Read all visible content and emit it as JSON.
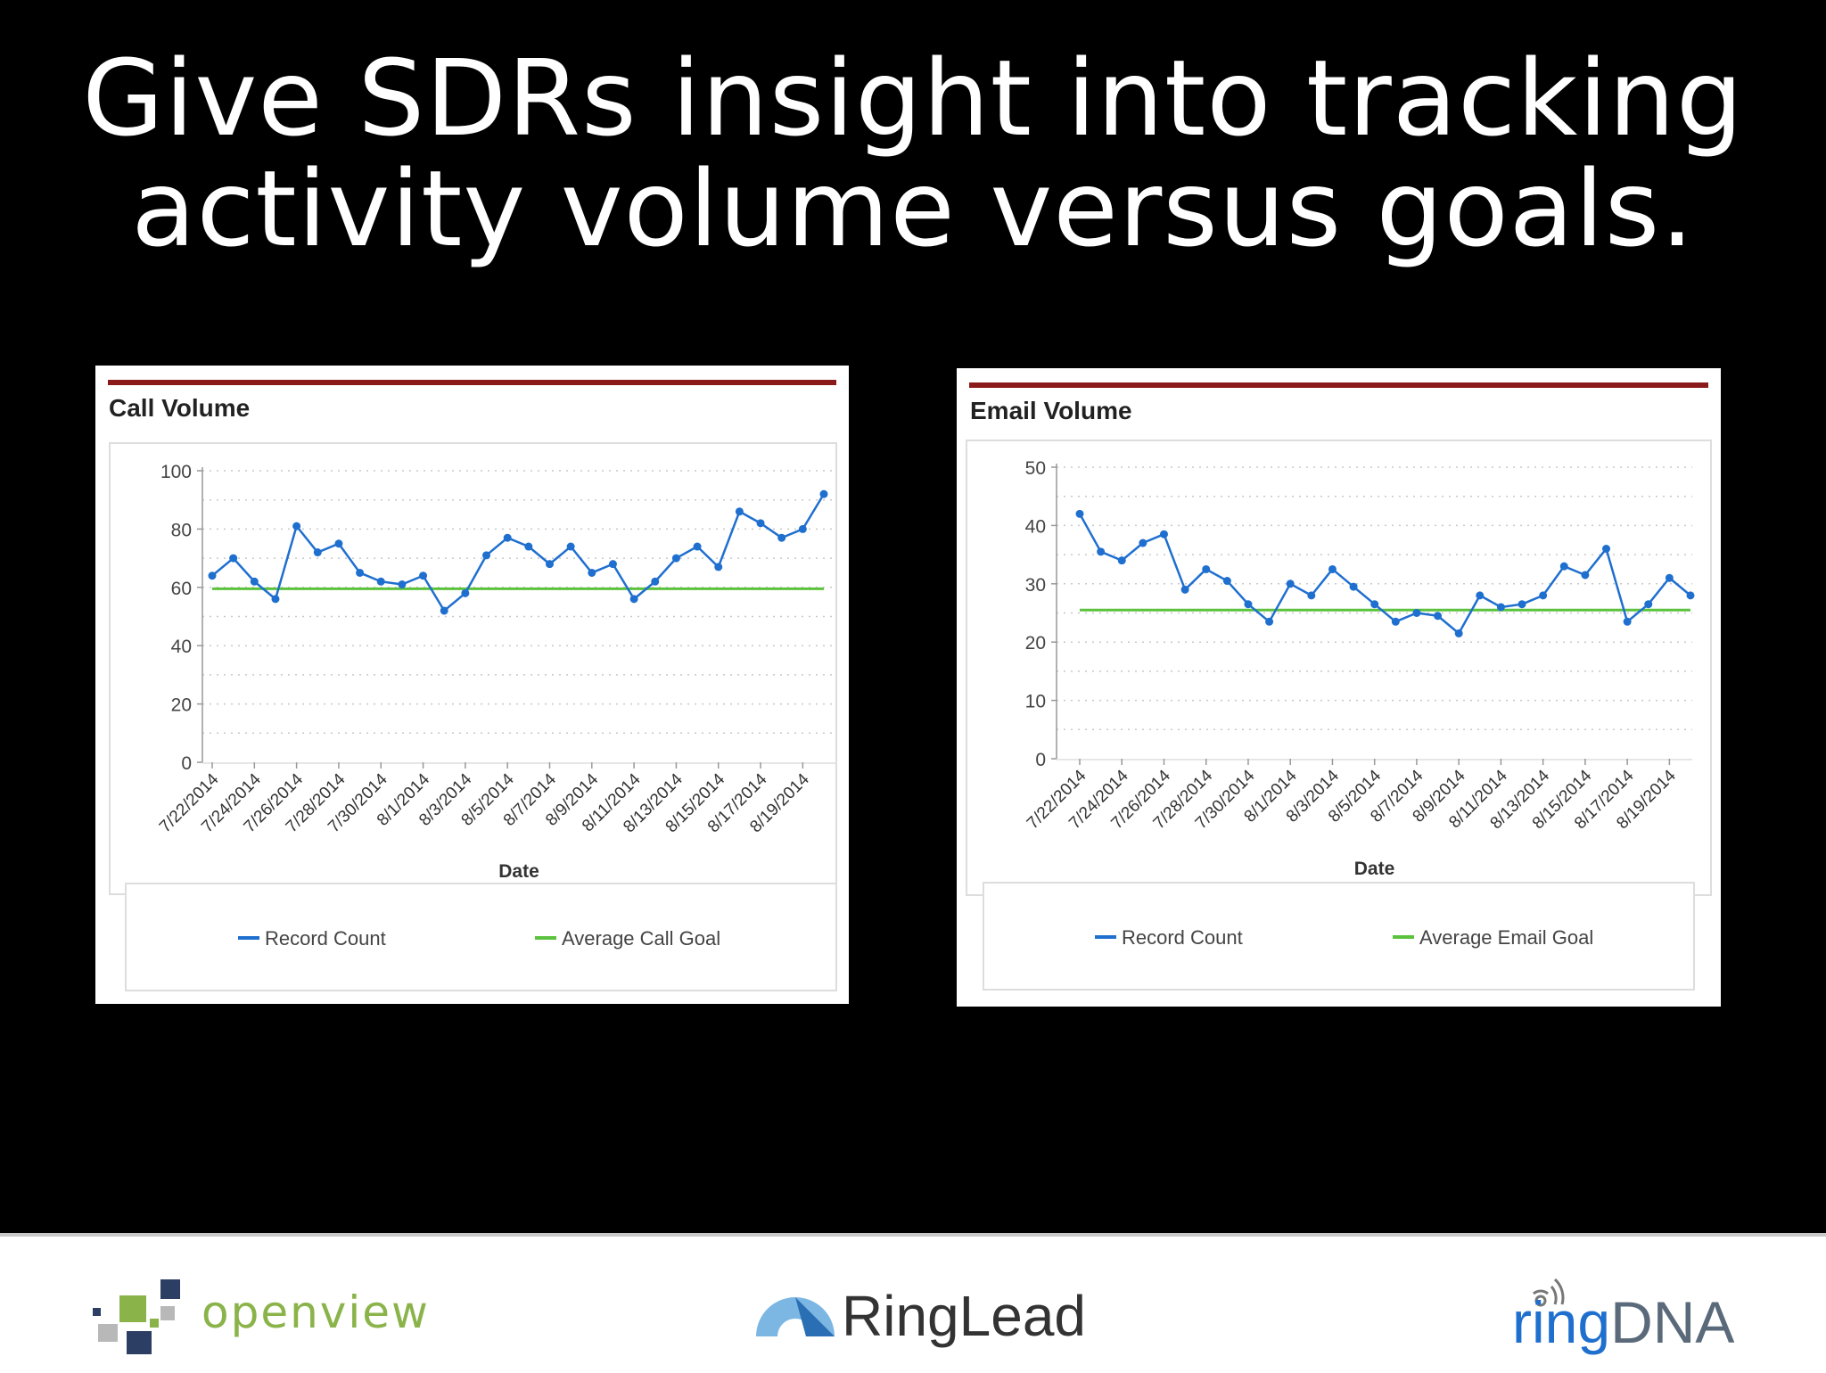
{
  "slide": {
    "title_line1": "Give SDRs insight into tracking",
    "title_line2": "activity volume versus goals."
  },
  "colors": {
    "background": "#000000",
    "card_accent": "#8b1a1a",
    "record_line": "#1f6fcf",
    "goal_line": "#5cc23e",
    "gridline": "#c8c8c8"
  },
  "chart_data": [
    {
      "type": "line",
      "title": "Call Volume",
      "xlabel": "Date",
      "ylabel": "",
      "ylim": [
        0,
        100
      ],
      "yticks": [
        0,
        20,
        40,
        60,
        80,
        100
      ],
      "grid": true,
      "legend_position": "bottom",
      "x_tick_labels": [
        "7/22/2014",
        "7/24/2014",
        "7/26/2014",
        "7/28/2014",
        "7/30/2014",
        "8/1/2014",
        "8/3/2014",
        "8/5/2014",
        "8/7/2014",
        "8/9/2014",
        "8/11/2014",
        "8/13/2014",
        "8/15/2014",
        "8/17/2014",
        "8/19/2014"
      ],
      "series": [
        {
          "name": "Record Count",
          "color": "#1f6fcf",
          "values": [
            64,
            70,
            62,
            56,
            81,
            72,
            75,
            65,
            62,
            61,
            64,
            52,
            58,
            71,
            77,
            74,
            68,
            74,
            65,
            68,
            56,
            62,
            70,
            74,
            67,
            86,
            82,
            77,
            80,
            92
          ]
        },
        {
          "name": "Average Call Goal",
          "color": "#5cc23e",
          "values": [
            59.5,
            59.5,
            59.5,
            59.5,
            59.5,
            59.5,
            59.5,
            59.5,
            59.5,
            59.5,
            59.5,
            59.5,
            59.5,
            59.5,
            59.5,
            59.5,
            59.5,
            59.5,
            59.5,
            59.5,
            59.5,
            59.5,
            59.5,
            59.5,
            59.5,
            59.5,
            59.5,
            59.5,
            59.5,
            59.5
          ]
        }
      ]
    },
    {
      "type": "line",
      "title": "Email Volume",
      "xlabel": "Date",
      "ylabel": "",
      "ylim": [
        0,
        50
      ],
      "yticks": [
        0,
        10,
        20,
        30,
        40,
        50
      ],
      "grid": true,
      "legend_position": "bottom",
      "x_tick_labels": [
        "7/22/2014",
        "7/24/2014",
        "7/26/2014",
        "7/28/2014",
        "7/30/2014",
        "8/1/2014",
        "8/3/2014",
        "8/5/2014",
        "8/7/2014",
        "8/9/2014",
        "8/11/2014",
        "8/13/2014",
        "8/15/2014",
        "8/17/2014",
        "8/19/2014"
      ],
      "series": [
        {
          "name": "Record Count",
          "color": "#1f6fcf",
          "values": [
            42,
            35.5,
            34,
            37,
            38.5,
            29,
            32.5,
            30.5,
            26.5,
            23.5,
            30,
            28,
            32.5,
            29.5,
            26.5,
            23.5,
            25,
            24.5,
            21.5,
            28,
            26,
            26.5,
            28,
            33,
            31.5,
            36,
            23.5,
            26.5,
            31,
            28
          ]
        },
        {
          "name": "Average Email Goal",
          "color": "#5cc23e",
          "values": [
            25.5,
            25.5,
            25.5,
            25.5,
            25.5,
            25.5,
            25.5,
            25.5,
            25.5,
            25.5,
            25.5,
            25.5,
            25.5,
            25.5,
            25.5,
            25.5,
            25.5,
            25.5,
            25.5,
            25.5,
            25.5,
            25.5,
            25.5,
            25.5,
            25.5,
            25.5,
            25.5,
            25.5,
            25.5,
            25.5
          ]
        }
      ]
    }
  ],
  "footer": {
    "logos": [
      {
        "name": "openview",
        "text": "openview",
        "color": "#8ab34a"
      },
      {
        "name": "RingLead",
        "text": "RingLead",
        "color": "#333333"
      },
      {
        "name": "ringDNA",
        "text_ring": "ring",
        "text_dna": "DNA",
        "color_ring": "#1f6fcf",
        "color_dna": "#5a6a7a"
      }
    ]
  }
}
